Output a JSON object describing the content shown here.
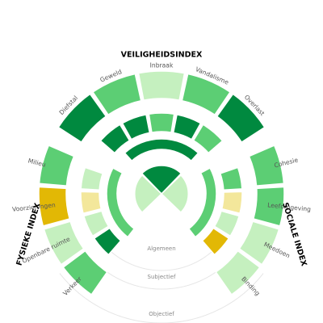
{
  "chart_data": {
    "type": "radial-segment",
    "legend": "none",
    "colors": {
      "dark_green": "#00893f",
      "green": "#5cce74",
      "light_green": "#c5f0bf",
      "light_yellow": "#f3e79b",
      "dark_yellow": "#e2b805"
    },
    "ring_labels": [
      "Algemeen",
      "Subjectief",
      "Objectief"
    ],
    "index_titles": [
      "VEILIGHEIDSINDEX",
      "FYSIEKE INDEX",
      "SOCIALE INDEX"
    ],
    "outer_labels": [
      "Diefstal",
      "Geweld",
      "Inbraak",
      "Vandalisme",
      "Overlast",
      "Milieu",
      "Voorzieningen",
      "Openbare ruimte",
      "Verkeer",
      "Cohesie",
      "Leefomgeving",
      "Meedoen",
      "Binding"
    ],
    "outer_ring": [
      {
        "index": "VEILIGHEIDSINDEX",
        "label": "Diefstal",
        "color": "dark_green"
      },
      {
        "index": "VEILIGHEIDSINDEX",
        "label": "Geweld",
        "color": "green"
      },
      {
        "index": "VEILIGHEIDSINDEX",
        "label": "Inbraak",
        "color": "light_green"
      },
      {
        "index": "VEILIGHEIDSINDEX",
        "label": "Vandalisme",
        "color": "green"
      },
      {
        "index": "VEILIGHEIDSINDEX",
        "label": "Overlast",
        "color": "dark_green"
      },
      {
        "index": "FYSIEKE INDEX",
        "label": "Milieu",
        "color": "green"
      },
      {
        "index": "FYSIEKE INDEX",
        "label": "Voorzieningen",
        "color": "dark_yellow"
      },
      {
        "index": "FYSIEKE INDEX",
        "label": "Openbare ruimte",
        "color": "light_green"
      },
      {
        "index": "FYSIEKE INDEX",
        "label": "Verkeer",
        "color": "green"
      },
      {
        "index": "SOCIALE INDEX",
        "label": "Cohesie",
        "color": "green"
      },
      {
        "index": "SOCIALE INDEX",
        "label": "Leefomgeving",
        "color": "green"
      },
      {
        "index": "SOCIALE INDEX",
        "label": "Meedoen",
        "color": "light_green"
      },
      {
        "index": "SOCIALE INDEX",
        "label": "Binding",
        "color": "light_green"
      }
    ],
    "middle_ring": [
      {
        "index": "VEILIGHEIDSINDEX",
        "label": "Diefstal",
        "color": "dark_green"
      },
      {
        "index": "VEILIGHEIDSINDEX",
        "label": "Geweld",
        "color": "dark_green"
      },
      {
        "index": "VEILIGHEIDSINDEX",
        "label": "Inbraak",
        "color": "green"
      },
      {
        "index": "VEILIGHEIDSINDEX",
        "label": "Vandalisme",
        "color": "dark_green"
      },
      {
        "index": "VEILIGHEIDSINDEX",
        "label": "Overlast",
        "color": "green"
      },
      {
        "index": "FYSIEKE INDEX",
        "label": "Milieu",
        "color": "light_green"
      },
      {
        "index": "FYSIEKE INDEX",
        "label": "Voorzieningen",
        "color": "light_yellow"
      },
      {
        "index": "FYSIEKE INDEX",
        "label": "Openbare ruimte",
        "color": "light_green"
      },
      {
        "index": "FYSIEKE INDEX",
        "label": "Verkeer",
        "color": "dark_green"
      },
      {
        "index": "SOCIALE INDEX",
        "label": "Cohesie",
        "color": "green"
      },
      {
        "index": "SOCIALE INDEX",
        "label": "Leefomgeving",
        "color": "light_yellow"
      },
      {
        "index": "SOCIALE INDEX",
        "label": "Meedoen",
        "color": "light_green"
      },
      {
        "index": "SOCIALE INDEX",
        "label": "Binding",
        "color": "dark_yellow"
      }
    ],
    "inner_ring": [
      {
        "index": "VEILIGHEIDSINDEX",
        "color": "dark_green"
      },
      {
        "index": "FYSIEKE INDEX",
        "color": "green"
      },
      {
        "index": "SOCIALE INDEX",
        "color": "green"
      }
    ],
    "core": [
      {
        "index": "VEILIGHEIDSINDEX",
        "color": "dark_green"
      },
      {
        "index": "FYSIEKE INDEX",
        "color": "light_green"
      },
      {
        "index": "SOCIALE INDEX",
        "color": "light_green"
      }
    ]
  }
}
